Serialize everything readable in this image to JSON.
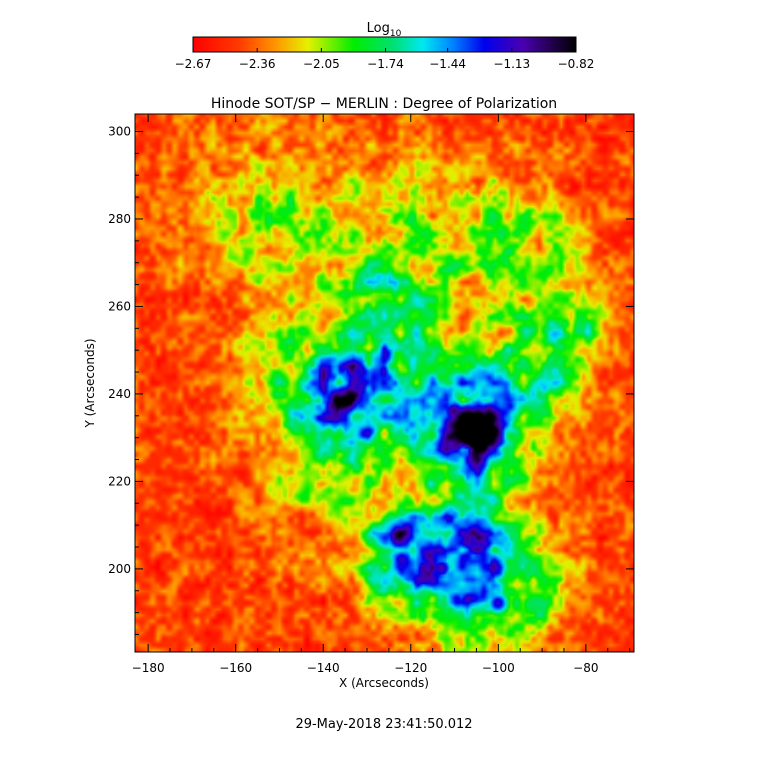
{
  "chart_data": {
    "type": "heatmap",
    "title": "Hinode SOT/SP − MERLIN : Degree of Polarization",
    "xlabel": "X (Arcseconds)",
    "ylabel": "Y (Arcseconds)",
    "xlim": [
      -183,
      -69
    ],
    "ylim": [
      181,
      304
    ],
    "x_ticks": [
      -180,
      -160,
      -140,
      -120,
      -100,
      -80
    ],
    "x_tick_labels": [
      "−180",
      "−160",
      "−140",
      "−120",
      "−100",
      "−80"
    ],
    "y_ticks": [
      200,
      220,
      240,
      260,
      280,
      300
    ],
    "y_tick_labels": [
      "200",
      "220",
      "240",
      "260",
      "280",
      "300"
    ],
    "colorbar": {
      "label_base": "Log",
      "label_sub": "10",
      "range": [
        -2.67,
        -0.82
      ],
      "ticks": [
        -2.67,
        -2.36,
        -2.05,
        -1.74,
        -1.44,
        -1.13,
        -0.82
      ],
      "tick_labels": [
        "−2.67",
        "−2.36",
        "−2.05",
        "−1.74",
        "−1.44",
        "−1.13",
        "−0.82"
      ],
      "colormap": "rainbow-red-to-black"
    },
    "features": [
      {
        "x": -134,
        "y": 240,
        "value": -0.9
      },
      {
        "x": -110,
        "y": 236,
        "value": -1.0
      },
      {
        "x": -103,
        "y": 230,
        "value": -1.05
      },
      {
        "x": -113,
        "y": 200,
        "value": -1.1
      },
      {
        "x": -122,
        "y": 202,
        "value": -1.15
      },
      {
        "x": -100,
        "y": 192,
        "value": -1.2
      }
    ],
    "timestamp": "29-May-2018 23:41:50.012"
  }
}
